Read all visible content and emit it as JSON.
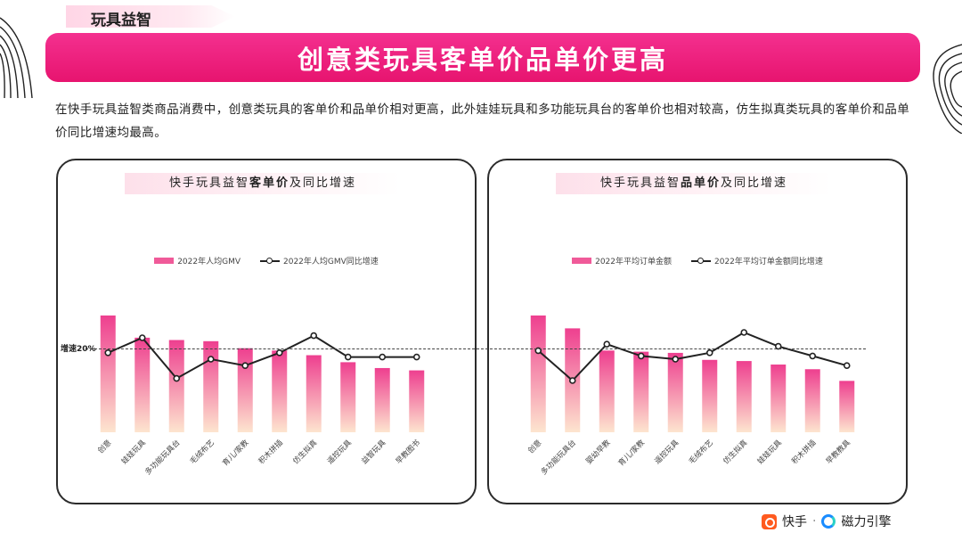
{
  "section_tag": "玩具益智",
  "title": "创意类玩具客单价品单价更高",
  "intro": "在快手玩具益智类商品消费中，创意类玩具的客单价和品单价相对更高，此外娃娃玩具和多功能玩具台的客单价也相对较高，仿生拟真类玩具的客单价和品单价同比增速均最高。",
  "reference_line": {
    "label": "增速20%",
    "value": 20
  },
  "left_panel": {
    "title_pre": "快手玩具益智",
    "title_bold": "客单价",
    "title_post": "及同比增速",
    "legend_bar": "2022年人均GMV",
    "legend_line": "2022年人均GMV同比增速"
  },
  "right_panel": {
    "title_pre": "快手玩具益智",
    "title_bold": "品单价",
    "title_post": "及同比增速",
    "legend_bar": "2022年平均订单金额",
    "legend_line": "2022年平均订单金额同比增速"
  },
  "footer": {
    "brand1": "快手",
    "sep": "·",
    "brand2": "磁力引擎"
  },
  "colors": {
    "accent": "#e7146f",
    "bar_top": "#ee3f8f",
    "bar_bottom": "#fde5cf",
    "line": "#222222"
  },
  "chart_data": [
    {
      "type": "bar",
      "categories": [
        "创意",
        "娃娃玩具",
        "多功能玩具台",
        "毛绒布艺",
        "育儿/家教",
        "积木拼插",
        "仿生拟真",
        "遥控玩具",
        "益智玩具",
        "早教图书"
      ],
      "series": [
        {
          "name": "2022年人均GMV",
          "type": "bar",
          "values": [
            100,
            81,
            79,
            78,
            72,
            70,
            66,
            60,
            55,
            53
          ]
        },
        {
          "name": "2022年人均GMV同比增速",
          "type": "line",
          "values": [
            16,
            30,
            -8,
            10,
            4,
            16,
            32,
            12,
            12,
            12
          ]
        }
      ],
      "ylim_bar": [
        0,
        100
      ],
      "ylim_line": [
        -40,
        80
      ],
      "reference": 20
    },
    {
      "type": "bar",
      "categories": [
        "创意",
        "多功能玩具台",
        "婴幼早教",
        "育儿/家教",
        "遥控玩具",
        "毛绒布艺",
        "仿生拟真",
        "娃娃玩具",
        "积木拼插",
        "早教教具"
      ],
      "series": [
        {
          "name": "2022年平均订单金额",
          "type": "bar",
          "values": [
            100,
            89,
            70,
            69,
            68,
            62,
            61,
            58,
            54,
            44
          ]
        },
        {
          "name": "2022年平均订单金额同比增速",
          "type": "line",
          "values": [
            18,
            -10,
            24,
            13,
            10,
            16,
            35,
            22,
            13,
            4
          ]
        }
      ],
      "ylim_bar": [
        0,
        100
      ],
      "ylim_line": [
        -40,
        80
      ],
      "reference": 20
    }
  ]
}
